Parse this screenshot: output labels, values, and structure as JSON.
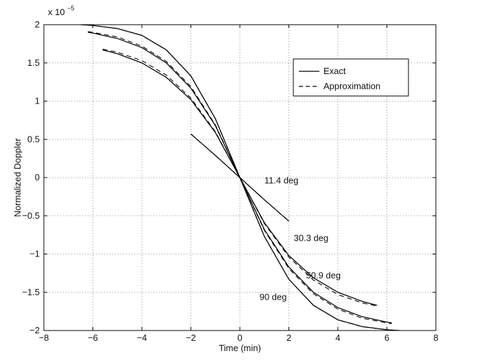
{
  "chart_data": {
    "type": "line",
    "title": "",
    "xlabel": "Time (min)",
    "ylabel": "Normalized Doppler",
    "exponent_label": "x 10",
    "exponent_power": "−5",
    "xlim": [
      -8,
      8
    ],
    "ylim": [
      -2e-05,
      2e-05
    ],
    "xticks": [
      -8,
      -6,
      -4,
      -2,
      0,
      2,
      4,
      6,
      8
    ],
    "yticks": [
      -2,
      -1.5,
      -1,
      -0.5,
      0,
      0.5,
      1,
      1.5,
      2
    ],
    "xtick_labels": [
      "−8",
      "−6",
      "−4",
      "−2",
      "0",
      "2",
      "4",
      "6",
      "8"
    ],
    "ytick_labels": [
      "−2",
      "−1.5",
      "−1",
      "−0.5",
      "0",
      "0.5",
      "1",
      "1.5",
      "2"
    ],
    "grid": true,
    "legend": {
      "placement": "top-right",
      "entries": [
        {
          "label": "Exact",
          "style": "solid"
        },
        {
          "label": "Approximation",
          "style": "dashed"
        }
      ]
    },
    "annotations": [
      {
        "text": "11.4 deg",
        "x": 1.0,
        "y": -7.5e-07
      },
      {
        "text": "30.3 deg",
        "x": 2.2,
        "y": -8.3e-06
      },
      {
        "text": "50.9 deg",
        "x": 2.7,
        "y": -1.32e-05
      },
      {
        "text": "90 deg",
        "x": 0.8,
        "y": -1.6e-05
      }
    ],
    "series": [
      {
        "name": "11.4 deg",
        "x": [
          -2,
          -1.5,
          -1,
          -0.5,
          0,
          0.5,
          1,
          1.5,
          2
        ],
        "exact": [
          5.7e-06,
          4.3e-06,
          2.9e-06,
          1.45e-06,
          0,
          -1.45e-06,
          -2.9e-06,
          -4.3e-06,
          -5.7e-06
        ],
        "approx": [
          5.7e-06,
          4.3e-06,
          2.9e-06,
          1.45e-06,
          0,
          -1.45e-06,
          -2.9e-06,
          -4.3e-06,
          -5.7e-06
        ]
      },
      {
        "name": "30.3 deg",
        "x": [
          -5.6,
          -5,
          -4,
          -3,
          -2,
          -1,
          0,
          1,
          2,
          3,
          4,
          5,
          5.6
        ],
        "exact": [
          1.67e-05,
          1.62e-05,
          1.5e-05,
          1.31e-05,
          1.02e-05,
          5.9e-06,
          0,
          -5.9e-06,
          -1.02e-05,
          -1.31e-05,
          -1.5e-05,
          -1.62e-05,
          -1.67e-05
        ],
        "approx": [
          1.68e-05,
          1.64e-05,
          1.53e-05,
          1.34e-05,
          1.04e-05,
          6e-06,
          0,
          -6e-06,
          -1.04e-05,
          -1.34e-05,
          -1.53e-05,
          -1.64e-05,
          -1.68e-05
        ]
      },
      {
        "name": "50.9 deg",
        "x": [
          -6.2,
          -6,
          -5,
          -4,
          -3,
          -2,
          -1,
          0,
          1,
          2,
          3,
          4,
          5,
          6,
          6.2
        ],
        "exact": [
          1.9e-05,
          1.89e-05,
          1.82e-05,
          1.7e-05,
          1.5e-05,
          1.17e-05,
          6.8e-06,
          0,
          -6.8e-06,
          -1.17e-05,
          -1.5e-05,
          -1.7e-05,
          -1.82e-05,
          -1.89e-05,
          -1.9e-05
        ],
        "approx": [
          1.91e-05,
          1.9e-05,
          1.84e-05,
          1.72e-05,
          1.52e-05,
          1.19e-05,
          6.9e-06,
          0,
          -6.9e-06,
          -1.19e-05,
          -1.52e-05,
          -1.72e-05,
          -1.84e-05,
          -1.9e-05,
          -1.91e-05
        ]
      },
      {
        "name": "90 deg",
        "x": [
          -6.5,
          -6,
          -5,
          -4,
          -3,
          -2,
          -1,
          0,
          1,
          2,
          3,
          4,
          5,
          6,
          6.5
        ],
        "exact": [
          2e-05,
          1.99e-05,
          1.95e-05,
          1.86e-05,
          1.67e-05,
          1.33e-05,
          7.7e-06,
          0,
          -7.7e-06,
          -1.33e-05,
          -1.67e-05,
          -1.86e-05,
          -1.95e-05,
          -1.99e-05,
          -2e-05
        ],
        "approx": [
          2e-05,
          1.99e-05,
          1.95e-05,
          1.86e-05,
          1.67e-05,
          1.33e-05,
          7.7e-06,
          0,
          -7.7e-06,
          -1.33e-05,
          -1.67e-05,
          -1.86e-05,
          -1.95e-05,
          -1.99e-05,
          -2e-05
        ]
      }
    ]
  }
}
